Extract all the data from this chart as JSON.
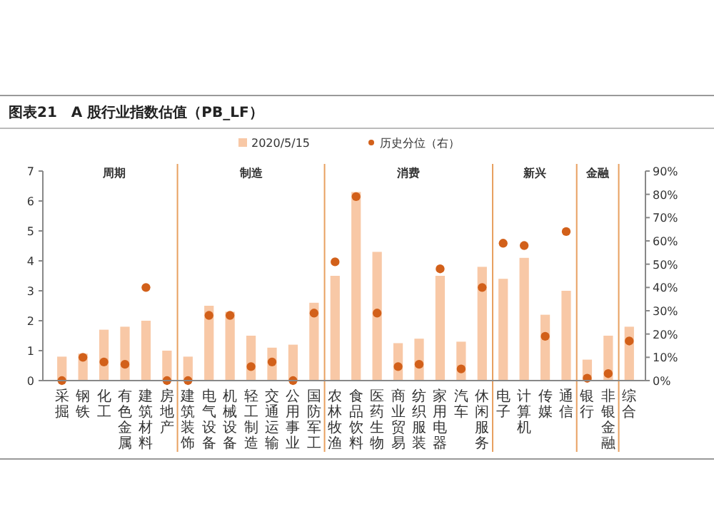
{
  "chart_data": {
    "type": "bar",
    "title": "图表21　A 股行业指数估值（PB_LF）",
    "categories": [
      "采掘",
      "钢铁",
      "化工",
      "有色金属",
      "建筑材料",
      "房地产",
      "建筑装饰",
      "电气设备",
      "机械设备",
      "轻工制造",
      "交通运输",
      "公用事业",
      "国防军工",
      "农林牧渔",
      "食品饮料",
      "医药生物",
      "商业贸易",
      "纺织服装",
      "家用电器",
      "汽车",
      "休闲服务",
      "电子",
      "计算机",
      "传媒",
      "通信",
      "银行",
      "非银金融",
      "综合"
    ],
    "series": [
      {
        "name": "2020/5/15",
        "color": "#f8c8a6",
        "values": [
          0.8,
          0.9,
          1.7,
          1.8,
          2.0,
          1.0,
          0.8,
          2.5,
          2.3,
          1.5,
          1.1,
          1.2,
          2.6,
          3.5,
          6.3,
          4.3,
          1.25,
          1.4,
          3.5,
          1.3,
          3.8,
          3.4,
          4.1,
          2.2,
          3.0,
          0.7,
          1.5,
          1.8
        ]
      },
      {
        "name": "历史分位（右）",
        "type": "scatter",
        "axis": "y2",
        "color": "#d2601a",
        "values": [
          0,
          10,
          8,
          7,
          40,
          0,
          0,
          28,
          28,
          6,
          8,
          0,
          29,
          51,
          79,
          29,
          6,
          7,
          48,
          5,
          40,
          59,
          58,
          19,
          64,
          1,
          3,
          17
        ]
      }
    ],
    "ylim": [
      0,
      7
    ],
    "yticks": [
      0,
      1,
      2,
      3,
      4,
      5,
      6,
      7
    ],
    "y2lim": [
      0,
      90
    ],
    "y2ticks": [
      {
        "value": 0,
        "label": "0%"
      },
      {
        "value": 10,
        "label": "10%"
      },
      {
        "value": 20,
        "label": "20%"
      },
      {
        "value": 30,
        "label": "30%"
      },
      {
        "value": 40,
        "label": "40%"
      },
      {
        "value": 50,
        "label": "50%"
      },
      {
        "value": 60,
        "label": "60%"
      },
      {
        "value": 70,
        "label": "70%"
      },
      {
        "value": 80,
        "label": "80%"
      },
      {
        "value": 90,
        "label": "90%"
      }
    ],
    "annotations": [
      "周期",
      "制造",
      "消费",
      "新兴",
      "金融"
    ],
    "legend": "top",
    "marker": "circle",
    "grid": false
  }
}
